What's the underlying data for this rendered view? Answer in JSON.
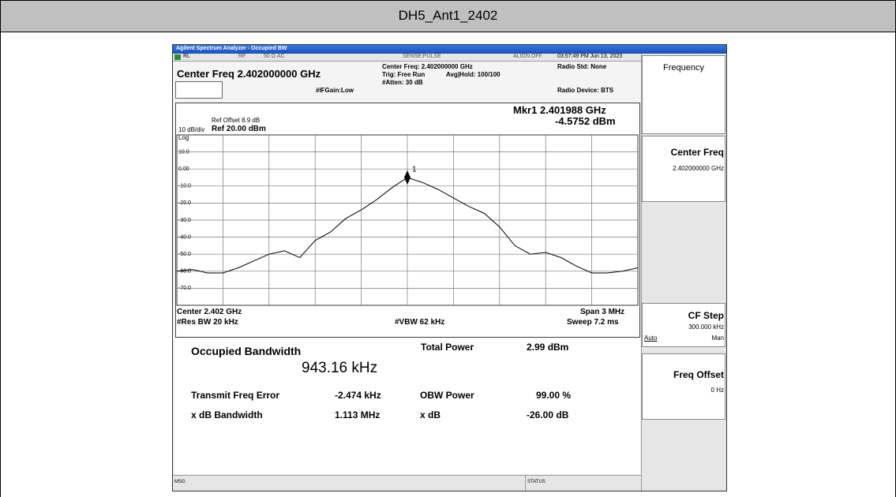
{
  "header": {
    "title": "DH5_Ant1_2402"
  },
  "window": {
    "title": "Agilent Spectrum Analyzer - Occupied BW"
  },
  "status_bar": {
    "rl": "RL",
    "rf": "RF",
    "input": "50 Ω  AC",
    "sense": "SENSE:PULSE",
    "align": "ALIGN OFF",
    "time": "03:57:49 PM Jun 13, 2023",
    "msg": "MSG",
    "status": "STATUS"
  },
  "settings": {
    "center_freq": "Center Freq 2.402000000 GHz",
    "center_freq_info": "Center Freq: 2.402000000 GHz",
    "trig": "Trig: Free Run",
    "avg": "Avg|Hold: 100/100",
    "atten": "#Atten: 30 dB",
    "ifgain": "#IFGain:Low",
    "radio_std": "Radio Std: None",
    "radio_device": "Radio Device: BTS"
  },
  "plot_info": {
    "ref_offset": "Ref Offset 8.9 dB",
    "scale": "10 dB/div",
    "ref": "Ref 20.00 dBm",
    "log": "Log",
    "marker_freq": "Mkr1  2.401988 GHz",
    "marker_level": "-4.5752 dBm",
    "marker_label": "1",
    "center": "Center  2.402 GHz",
    "span": "Span 3 MHz",
    "rbw": "#Res BW  20 kHz",
    "vbw": "#VBW  62 kHz",
    "sweep": "Sweep  7.2 ms"
  },
  "results": {
    "obw_label": "Occupied Bandwidth",
    "obw_value": "943.16 kHz",
    "total_power_label": "Total Power",
    "total_power_value": "2.99 dBm",
    "tfe_label": "Transmit Freq Error",
    "tfe_value": "-2.474 kHz",
    "obw_power_label": "OBW Power",
    "obw_power_value": "99.00 %",
    "xdb_bw_label": "x dB Bandwidth",
    "xdb_bw_value": "1.113 MHz",
    "xdb_label": "x dB",
    "xdb_value": "-26.00 dB"
  },
  "softkeys": {
    "menu": "Frequency",
    "center_freq": "Center Freq",
    "center_freq_value": "2.402000000 GHz",
    "cf_step": "CF Step",
    "cf_step_value": "300.000 kHz",
    "auto": "Auto",
    "man": "Man",
    "freq_offset": "Freq Offset",
    "freq_offset_value": "0 Hz"
  },
  "chart_data": {
    "type": "line",
    "x": [
      -1.5,
      -1.4,
      -1.3,
      -1.2,
      -1.1,
      -1.0,
      -0.9,
      -0.8,
      -0.7,
      -0.6,
      -0.5,
      -0.4,
      -0.3,
      -0.2,
      -0.1,
      0,
      0.1,
      0.2,
      0.3,
      0.4,
      0.5,
      0.6,
      0.7,
      0.8,
      0.9,
      1.0,
      1.1,
      1.2,
      1.3,
      1.4,
      1.5
    ],
    "series": [
      {
        "color": "#000000",
        "values": [
          -60,
          -59,
          -61,
          -61,
          -58,
          -54,
          -50,
          -48,
          -52,
          -42,
          -37,
          -29,
          -24,
          -18,
          -11,
          -5,
          -8,
          -12,
          -17,
          -22,
          -26,
          -34,
          -45,
          -50,
          -49,
          -52,
          -57,
          -61,
          -61,
          -60,
          -58
        ]
      }
    ],
    "xlim": [
      -1.5,
      1.5
    ],
    "ylim": [
      -80,
      20
    ],
    "yticks": [
      {
        "value": 10,
        "label": "10.0"
      },
      {
        "value": 0,
        "label": "0.00"
      },
      {
        "value": -10,
        "label": "-10.0"
      },
      {
        "value": -20,
        "label": "-20.0"
      },
      {
        "value": -30,
        "label": "-30.0"
      },
      {
        "value": -40,
        "label": "-40.0"
      },
      {
        "value": -50,
        "label": "-50.0"
      },
      {
        "value": -60,
        "label": "-60.0"
      },
      {
        "value": -70,
        "label": "-70.0"
      }
    ],
    "grid": true
  }
}
